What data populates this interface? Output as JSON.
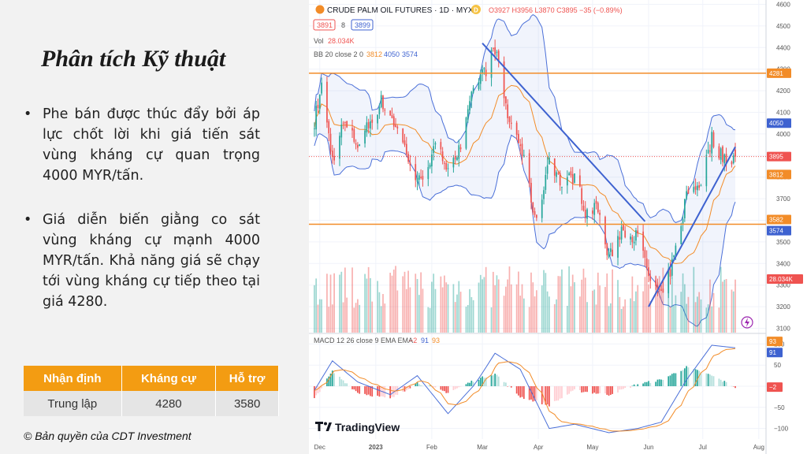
{
  "left_panel": {
    "title": "Phân tích Kỹ thuật",
    "bullets": [
      "Phe bán được thúc đẩy bởi áp lực chốt lời khi giá tiến sát vùng kháng cự quan trọng 4000 MYR/tấn.",
      "Giá diễn biến giằng co sát vùng kháng cự mạnh 4000 MYR/tấn. Khả năng giá sẽ chạy tới vùng kháng cự tiếp theo tại giá 4280."
    ],
    "bullet_symbol": "•",
    "table": {
      "headers": [
        "Nhận định",
        "Kháng cự",
        "Hỗ trợ"
      ],
      "row": [
        "Trung lập",
        "4280",
        "3580"
      ]
    },
    "copyright": "© Bản quyền của CDT Investment"
  },
  "chart_header": {
    "symbol": "CRUDE PALM OIL FUTURES · 1D · MYX",
    "badge": "D",
    "ohlc": "O3927 H3956 L3870 C3895 −35 (−0.89%)",
    "bid": "3891",
    "spread": "8",
    "ask": "3899",
    "vol_label": "Vol",
    "vol_value": "28.034K",
    "bb_label": "BB 20 close 2 0",
    "bb_basis": "3812",
    "bb_upper": "4050",
    "bb_lower": "3574",
    "macd_label": "MACD 12 26 close 9 EMA EMA",
    "macd_hist": "−2",
    "macd_line": "91",
    "macd_signal": "93",
    "logo_text": "TradingView"
  },
  "colors": {
    "up": "#26a69a",
    "down": "#ef5350",
    "bb": "#4a6fd8",
    "basis": "#f28c28",
    "level": "#f28c28",
    "trend": "#3e62d0",
    "price": "#ef5350"
  },
  "chart_data": {
    "type": "candlestick",
    "x_ticks": [
      "Dec",
      "2023",
      "Feb",
      "Mar",
      "Apr",
      "May",
      "Jun",
      "Jul",
      "Aug"
    ],
    "price_ticks": [
      3100,
      3200,
      3300,
      3400,
      3500,
      3600,
      3700,
      3800,
      3900,
      4000,
      4100,
      4200,
      4300,
      4400,
      4500,
      4600
    ],
    "price_range": [
      3080,
      4620
    ],
    "horizontal_levels": [
      4281,
      3582
    ],
    "trendlines": [
      {
        "from": [
          "2023-03-01",
          4420
        ],
        "to": [
          "2023-05-30",
          3595
        ]
      },
      {
        "from": [
          "2023-06-01",
          3200
        ],
        "to": [
          "2023-07-19",
          3940
        ]
      }
    ],
    "last_close": 3895,
    "right_labels": {
      "resistance": "4281",
      "bb_upper": "4050",
      "last": "3895",
      "bb_basis": "3812",
      "support": "3582",
      "bb_lower": "3574",
      "volume": "28.034K"
    },
    "price_path": [
      [
        "2022-11-28",
        4060
      ],
      [
        "2022-12-02",
        4220
      ],
      [
        "2022-12-08",
        3880
      ],
      [
        "2022-12-14",
        4050
      ],
      [
        "2022-12-22",
        3950
      ],
      [
        "2023-01-04",
        4150
      ],
      [
        "2023-01-09",
        4090
      ],
      [
        "2023-01-16",
        3960
      ],
      [
        "2023-01-24",
        3770
      ],
      [
        "2023-02-03",
        3930
      ],
      [
        "2023-02-10",
        3860
      ],
      [
        "2023-02-17",
        3930
      ],
      [
        "2023-02-25",
        4240
      ],
      [
        "2023-03-03",
        4300
      ],
      [
        "2023-03-08",
        4400
      ],
      [
        "2023-03-15",
        4080
      ],
      [
        "2023-03-22",
        3950
      ],
      [
        "2023-03-31",
        3580
      ],
      [
        "2023-04-07",
        3900
      ],
      [
        "2023-04-14",
        3760
      ],
      [
        "2023-04-21",
        3810
      ],
      [
        "2023-04-28",
        3620
      ],
      [
        "2023-05-03",
        3680
      ],
      [
        "2023-05-10",
        3420
      ],
      [
        "2023-05-17",
        3560
      ],
      [
        "2023-05-26",
        3520
      ],
      [
        "2023-06-02",
        3320
      ],
      [
        "2023-06-08",
        3240
      ],
      [
        "2023-06-15",
        3420
      ],
      [
        "2023-06-22",
        3720
      ],
      [
        "2023-06-30",
        3780
      ],
      [
        "2023-07-06",
        3980
      ],
      [
        "2023-07-12",
        3890
      ],
      [
        "2023-07-19",
        3895
      ]
    ],
    "macd_ticks": [
      100,
      50,
      0,
      -50,
      -100
    ],
    "macd_range": [
      -125,
      125
    ],
    "macd_path": [
      [
        "2022-11-28",
        -10
      ],
      [
        "2022-12-08",
        60
      ],
      [
        "2022-12-22",
        10
      ],
      [
        "2023-01-09",
        -20
      ],
      [
        "2023-01-24",
        25
      ],
      [
        "2023-02-10",
        -65
      ],
      [
        "2023-02-25",
        5
      ],
      [
        "2023-03-08",
        78
      ],
      [
        "2023-03-22",
        40
      ],
      [
        "2023-04-07",
        -100
      ],
      [
        "2023-04-21",
        -90
      ],
      [
        "2023-05-10",
        -110
      ],
      [
        "2023-05-26",
        -100
      ],
      [
        "2023-06-08",
        -85
      ],
      [
        "2023-06-22",
        15
      ],
      [
        "2023-07-06",
        97
      ],
      [
        "2023-07-19",
        91
      ]
    ],
    "macd_hist_path": [
      [
        "2022-11-28",
        -30
      ],
      [
        "2022-12-08",
        35
      ],
      [
        "2022-12-22",
        -15
      ],
      [
        "2023-01-09",
        -30
      ],
      [
        "2023-01-24",
        8
      ],
      [
        "2023-02-10",
        -15
      ],
      [
        "2023-02-25",
        15
      ],
      [
        "2023-03-08",
        30
      ],
      [
        "2023-03-22",
        -25
      ],
      [
        "2023-04-07",
        -45
      ],
      [
        "2023-04-21",
        -10
      ],
      [
        "2023-05-10",
        -20
      ],
      [
        "2023-05-26",
        5
      ],
      [
        "2023-06-08",
        15
      ],
      [
        "2023-06-22",
        45
      ],
      [
        "2023-07-06",
        25
      ],
      [
        "2023-07-19",
        -2
      ]
    ]
  }
}
